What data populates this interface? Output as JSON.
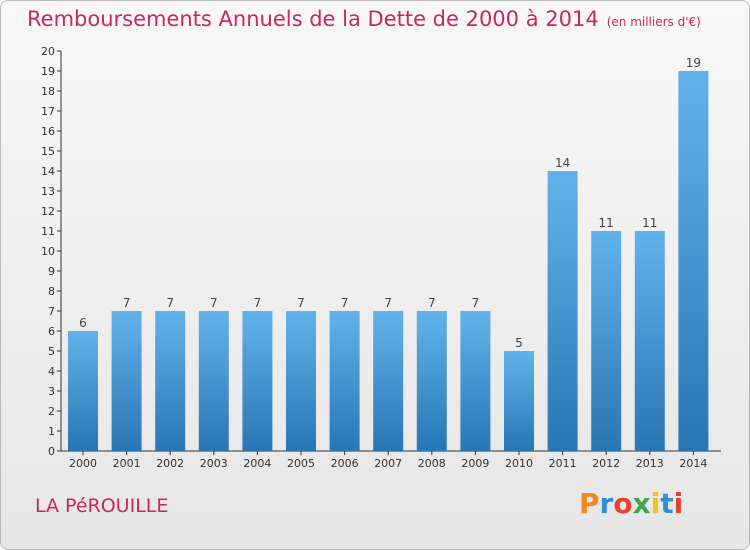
{
  "header": {
    "title": "Remboursements Annuels de la Dette de 2000 à 2014",
    "subtitle": "(en milliers d'€)"
  },
  "footer": {
    "commune": "LA PéROUILLE",
    "logo": "Proxiti",
    "logo_colors": [
      "#f08a1c",
      "#2e8fd6",
      "#e8412c",
      "#3ea84b",
      "#f0c21c",
      "#2e8fd6",
      "#e8412c"
    ]
  },
  "chart_data": {
    "type": "bar",
    "title": "Remboursements Annuels de la Dette de 2000 à 2014",
    "categories": [
      "2000",
      "2001",
      "2002",
      "2003",
      "2004",
      "2005",
      "2006",
      "2007",
      "2008",
      "2009",
      "2010",
      "2011",
      "2012",
      "2013",
      "2014"
    ],
    "values": [
      6,
      7,
      7,
      7,
      7,
      7,
      7,
      7,
      7,
      7,
      5,
      14,
      11,
      11,
      19
    ],
    "ylim": [
      0,
      20
    ],
    "yticks": [
      0,
      1,
      2,
      3,
      4,
      5,
      6,
      7,
      8,
      9,
      10,
      11,
      12,
      13,
      14,
      15,
      16,
      17,
      18,
      19,
      20
    ],
    "grid": false,
    "bar_color_top": "#62b2ea",
    "bar_color_bottom": "#2877b5"
  }
}
